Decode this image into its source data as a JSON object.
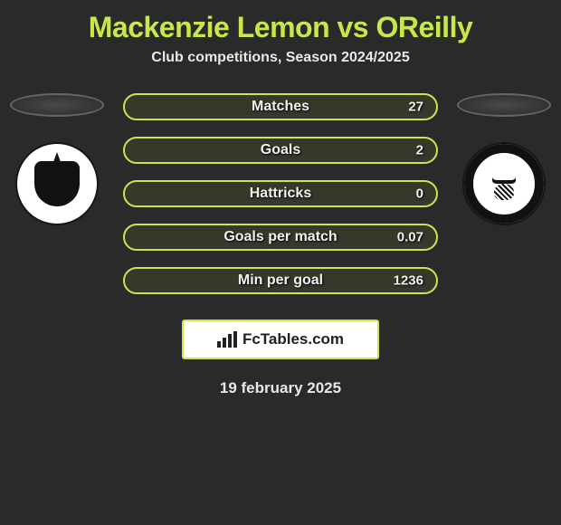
{
  "header": {
    "title": "Mackenzie Lemon vs OReilly",
    "subtitle": "Club competitions, Season 2024/2025",
    "title_color": "#c6e84a",
    "title_fontsize": 32
  },
  "accent_color": "#c6e84a",
  "background_color": "#2a2a2a",
  "stats": [
    {
      "label": "Matches",
      "value": "27"
    },
    {
      "label": "Goals",
      "value": "2"
    },
    {
      "label": "Hattricks",
      "value": "0"
    },
    {
      "label": "Goals per match",
      "value": "0.07"
    },
    {
      "label": "Min per goal",
      "value": "1236"
    }
  ],
  "crests": {
    "left": {
      "name": "club-crest-left"
    },
    "right": {
      "name": "club-crest-right"
    }
  },
  "brand": {
    "icon": "bar-chart-icon",
    "text": "FcTables.com"
  },
  "date": "19 february 2025"
}
